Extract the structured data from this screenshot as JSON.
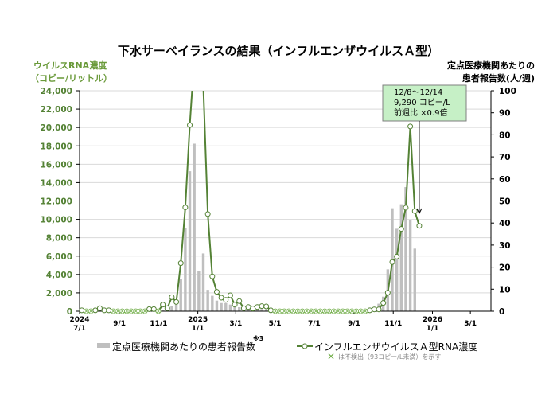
{
  "chart_data": {
    "type": "bar+line",
    "title": "下水サーベイランスの結果（インフルエンザウイルスＡ型）",
    "left_axis": {
      "label_line1": "ウイルスRNA濃度",
      "label_line2": "（コピー/リットル）",
      "range": [
        0,
        24000
      ],
      "ticks": [
        "0",
        "2,000",
        "4,000",
        "6,000",
        "8,000",
        "10,000",
        "12,000",
        "14,000",
        "16,000",
        "18,000",
        "20,000",
        "22,000",
        "24,000"
      ]
    },
    "right_axis": {
      "label_line1": "定点医療機関あたりの",
      "label_line2": "患者報告数(人/週)",
      "range": [
        0,
        100
      ],
      "ticks": [
        "0",
        "10",
        "20",
        "30",
        "40",
        "50",
        "60",
        "70",
        "80",
        "90",
        "100"
      ]
    },
    "x_ticks": [
      {
        "label": "7/1",
        "year": "2024",
        "day": 0
      },
      {
        "label": "9/1",
        "day": 62
      },
      {
        "label": "11/1",
        "day": 123
      },
      {
        "label": "1/1",
        "year": "2025",
        "day": 184
      },
      {
        "label": "3/1",
        "day": 243
      },
      {
        "label": "5/1",
        "day": 304
      },
      {
        "label": "7/1",
        "day": 365
      },
      {
        "label": "9/1",
        "day": 427
      },
      {
        "label": "11/1",
        "day": 488
      },
      {
        "label": "1/1",
        "year": "2026",
        "day": 549
      },
      {
        "label": "3/1",
        "day": 608
      }
    ],
    "x_max_day": 640,
    "week_start": "2024-07-01",
    "series": [
      {
        "name": "定点医療機関あたりの患者報告数",
        "type": "bar",
        "axis": "right",
        "color": "#bfbfbf",
        "values": [
          0.2,
          0.2,
          0.2,
          0.2,
          0.2,
          0.2,
          0.2,
          0.2,
          0.2,
          0.2,
          0.2,
          0.2,
          0.2,
          0.2,
          0.3,
          0.3,
          0.4,
          0.5,
          0.6,
          0.8,
          2.5,
          3,
          14.8,
          37.7,
          63.5,
          76,
          18.4,
          26.2,
          9.7,
          7,
          4.8,
          3.7,
          3.7,
          3,
          2.5,
          1.8,
          1.2,
          1,
          1,
          1,
          1,
          0.8,
          0.6,
          0.4,
          0.3,
          0.2,
          0.2,
          0.2,
          0.2,
          0.2,
          0.2,
          0.2,
          0.2,
          0.2,
          0.2,
          0.2,
          0.2,
          0.2,
          0.2,
          0.2,
          0.3,
          0.4,
          0.6,
          1,
          1.5,
          1.5,
          3.4,
          6.6,
          19,
          46.7,
          37.4,
          48.5,
          56.3,
          41.3,
          28.4,
          null
        ]
      },
      {
        "name": "インフルエンザウイルスＡ型RNA濃度",
        "type": "line",
        "axis": "left",
        "color": "#548235",
        "values": [
          100,
          0,
          0,
          100,
          320,
          100,
          100,
          0,
          0,
          0,
          0,
          0,
          0,
          0,
          0,
          230,
          230,
          0,
          720,
          320,
          1530,
          1010,
          5230,
          11300,
          20260,
          27600,
          30000,
          24500,
          10580,
          3790,
          2110,
          1470,
          1240,
          1730,
          720,
          1100,
          320,
          460,
          290,
          460,
          550,
          520,
          100,
          0,
          0,
          0,
          0,
          0,
          0,
          0,
          0,
          0,
          0,
          0,
          0,
          0,
          0,
          0,
          0,
          0,
          0,
          0,
          0,
          0,
          100,
          200,
          200,
          900,
          2020,
          5350,
          5950,
          8960,
          11270,
          20110,
          10900,
          9290
        ]
      }
    ],
    "annotation": {
      "line1": "12/8～12/14",
      "line2": "9,290 コピー/L",
      "line3": "前週比 ×0.9倍",
      "week_index": 75
    },
    "legend": {
      "bar_label": "定点医療機関あたりの患者報告数",
      "bar_note": "※3",
      "line_label": "インフルエンザウイルスＡ型RNA濃度",
      "nd_note": "は不検出（93コピー/L未満）を示す",
      "placement": "bottom"
    },
    "grid": true
  }
}
